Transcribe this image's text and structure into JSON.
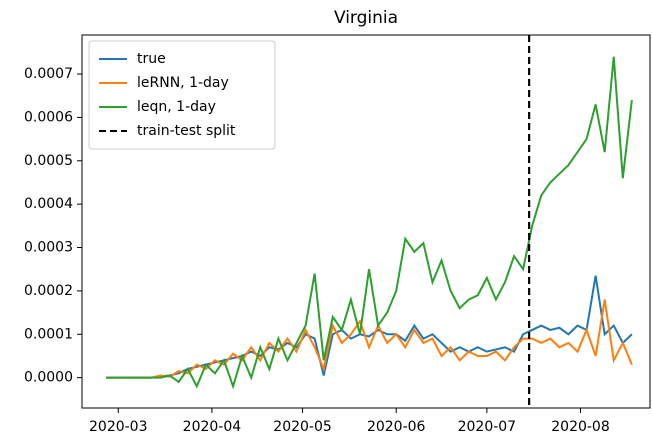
{
  "chart_data": {
    "type": "line",
    "title": "Virginia",
    "x": [
      "2020-02-26",
      "2020-02-29",
      "2020-03-03",
      "2020-03-06",
      "2020-03-09",
      "2020-03-12",
      "2020-03-15",
      "2020-03-18",
      "2020-03-21",
      "2020-03-24",
      "2020-03-27",
      "2020-03-30",
      "2020-04-02",
      "2020-04-05",
      "2020-04-08",
      "2020-04-11",
      "2020-04-14",
      "2020-04-17",
      "2020-04-20",
      "2020-04-23",
      "2020-04-26",
      "2020-04-29",
      "2020-05-02",
      "2020-05-05",
      "2020-05-08",
      "2020-05-11",
      "2020-05-14",
      "2020-05-17",
      "2020-05-20",
      "2020-05-23",
      "2020-05-26",
      "2020-05-29",
      "2020-06-01",
      "2020-06-04",
      "2020-06-07",
      "2020-06-10",
      "2020-06-13",
      "2020-06-16",
      "2020-06-19",
      "2020-06-22",
      "2020-06-25",
      "2020-06-28",
      "2020-07-01",
      "2020-07-04",
      "2020-07-07",
      "2020-07-10",
      "2020-07-13",
      "2020-07-16",
      "2020-07-19",
      "2020-07-22",
      "2020-07-25",
      "2020-07-28",
      "2020-07-31",
      "2020-08-03",
      "2020-08-06",
      "2020-08-09",
      "2020-08-12",
      "2020-08-15",
      "2020-08-18"
    ],
    "series": [
      {
        "name": "true",
        "color": "#1f77b4",
        "values": [
          0,
          0,
          0,
          0,
          0,
          0,
          3e-06,
          5e-06,
          1e-05,
          2e-05,
          2.5e-05,
          3e-05,
          3.5e-05,
          4e-05,
          4.5e-05,
          5e-05,
          6e-05,
          5e-05,
          7e-05,
          6.5e-05,
          8e-05,
          7e-05,
          0.0001,
          9e-05,
          5e-06,
          0.0001,
          0.00011,
          9e-05,
          0.0001,
          9.5e-05,
          0.00011,
          0.0001,
          0.0001,
          8.5e-05,
          0.00012,
          9e-05,
          0.0001,
          8e-05,
          6e-05,
          7e-05,
          6e-05,
          7e-05,
          6e-05,
          6.5e-05,
          7e-05,
          6e-05,
          0.0001,
          0.00011,
          0.00012,
          0.00011,
          0.000115,
          0.0001,
          0.00012,
          0.00011,
          0.000235,
          0.0001,
          0.00012,
          8e-05,
          0.0001
        ]
      },
      {
        "name": "leRNN, 1-day",
        "color": "#ff7f0e",
        "values": [
          0,
          0,
          0,
          0,
          0,
          0,
          5e-06,
          2e-06,
          1.5e-05,
          1e-05,
          3e-05,
          2e-05,
          4e-05,
          3e-05,
          5.5e-05,
          4e-05,
          7e-05,
          4e-05,
          8e-05,
          6e-05,
          9e-05,
          6e-05,
          0.00011,
          7e-05,
          2e-05,
          0.00012,
          8e-05,
          0.0001,
          0.00013,
          7e-05,
          0.00012,
          8e-05,
          0.0001,
          7e-05,
          0.00011,
          8e-05,
          9e-05,
          5e-05,
          7e-05,
          4e-05,
          6e-05,
          5e-05,
          5e-05,
          6e-05,
          4e-05,
          7e-05,
          9e-05,
          9e-05,
          8e-05,
          9e-05,
          7e-05,
          8e-05,
          6e-05,
          0.00011,
          5e-05,
          0.00018,
          4e-05,
          8e-05,
          3e-05
        ]
      },
      {
        "name": "leqn, 1-day",
        "color": "#2ca02c",
        "values": [
          0,
          0,
          0,
          0,
          0,
          0,
          0,
          5e-06,
          -1e-05,
          2e-05,
          -2e-05,
          3e-05,
          1e-05,
          4e-05,
          -2e-05,
          5e-05,
          0,
          7e-05,
          2e-05,
          9e-05,
          4e-05,
          8e-05,
          0.00012,
          0.00024,
          4e-05,
          0.00014,
          0.00011,
          0.00018,
          0.0001,
          0.00025,
          0.00012,
          0.00015,
          0.0002,
          0.00032,
          0.00029,
          0.00031,
          0.00022,
          0.00027,
          0.0002,
          0.00016,
          0.00018,
          0.00019,
          0.00023,
          0.00018,
          0.00022,
          0.00028,
          0.00025,
          0.00035,
          0.00042,
          0.00045,
          0.00047,
          0.00049,
          0.00052,
          0.00055,
          0.00063,
          0.00052,
          0.00074,
          0.00046,
          0.00064
        ]
      }
    ],
    "vlines": [
      {
        "name": "train-test split",
        "x": "2020-07-15",
        "color": "#000000",
        "style": "dashed"
      }
    ],
    "xlim": [
      "2020-02-18",
      "2020-08-24"
    ],
    "xticks": [
      {
        "value": "2020-03-01",
        "label": "2020-03"
      },
      {
        "value": "2020-04-01",
        "label": "2020-04"
      },
      {
        "value": "2020-05-01",
        "label": "2020-05"
      },
      {
        "value": "2020-06-01",
        "label": "2020-06"
      },
      {
        "value": "2020-07-01",
        "label": "2020-07"
      },
      {
        "value": "2020-08-01",
        "label": "2020-08"
      }
    ],
    "ylim": [
      -7e-05,
      0.00079
    ],
    "yticks": [
      {
        "value": 0,
        "label": "0.0000"
      },
      {
        "value": 0.0001,
        "label": "0.0001"
      },
      {
        "value": 0.0002,
        "label": "0.0002"
      },
      {
        "value": 0.0003,
        "label": "0.0003"
      },
      {
        "value": 0.0004,
        "label": "0.0004"
      },
      {
        "value": 0.0005,
        "label": "0.0005"
      },
      {
        "value": 0.0006,
        "label": "0.0006"
      },
      {
        "value": 0.0007,
        "label": "0.0007"
      }
    ],
    "grid": false,
    "legend": "upper left"
  }
}
